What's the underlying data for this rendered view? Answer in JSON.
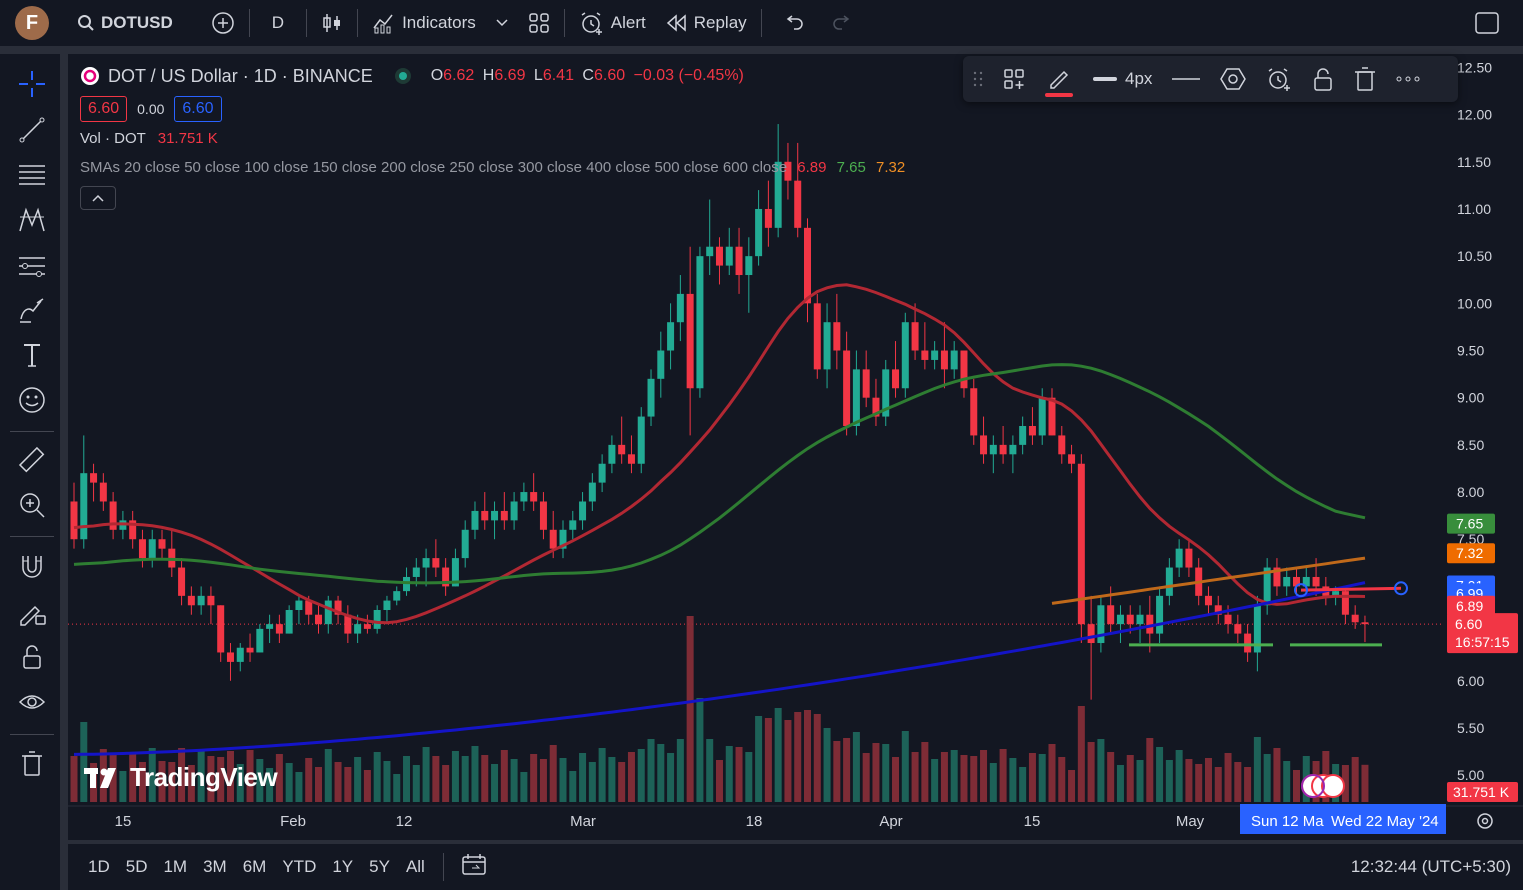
{
  "topbar": {
    "avatar_letter": "F",
    "symbol": "DOTUSD",
    "interval": "D",
    "indicators_label": "Indicators",
    "alert_label": "Alert",
    "replay_label": "Replay"
  },
  "legend": {
    "title": "DOT / US Dollar · 1D · BINANCE",
    "open_label": "O",
    "open": "6.62",
    "high_label": "H",
    "high": "6.69",
    "low_label": "L",
    "low": "6.41",
    "close_label": "C",
    "close": "6.60",
    "change": "−0.03 (−0.45%)",
    "bid": "6.60",
    "spread": "0.00",
    "ask": "6.60",
    "vol_label": "Vol · DOT",
    "vol_value": "31.751 K",
    "sma_label": "SMAs 20 close 50 close 100 close 150 close 200 close 250 close 300 close 400 close 500 close 600 close",
    "sma_v1": "6.89",
    "sma_v2": "7.65",
    "sma_v3": "7.32"
  },
  "drawbar": {
    "width_label": "4px"
  },
  "price_axis": {
    "ticks": [
      "12.50",
      "12.00",
      "11.50",
      "11.00",
      "10.50",
      "10.00",
      "9.50",
      "9.00",
      "8.50",
      "8.00",
      "7.50",
      "7.00",
      "6.50",
      "6.00",
      "5.50",
      "5.00"
    ],
    "badges": [
      {
        "label": "7.65",
        "color": "#388e3c"
      },
      {
        "label": "7.32",
        "color": "#ef6c00"
      },
      {
        "label": "7.01",
        "color": "#2962ff"
      },
      {
        "label": "6.99",
        "color": "#2962ff"
      },
      {
        "label": "6.89",
        "color": "#f23645"
      }
    ],
    "last_price": "6.60",
    "countdown": "16:57:15",
    "volume_badge": "31.751 K"
  },
  "time_axis": {
    "labels": [
      "15",
      "Feb",
      "12",
      "Mar",
      "18",
      "Apr",
      "15",
      "May"
    ],
    "range_start": "Sun 12 Ma",
    "range_end": "Wed 22 May '24"
  },
  "bottom": {
    "ranges": [
      "1D",
      "5D",
      "1M",
      "3M",
      "6M",
      "YTD",
      "1Y",
      "5Y",
      "All"
    ],
    "clock": "12:32:44 (UTC+5:30)"
  },
  "watermark": "TradingView",
  "colors": {
    "up": "#22ab94",
    "down": "#f23645",
    "sma_red": "#b22833",
    "sma_green": "#2e7d32",
    "sma_blue": "#1414c8",
    "sma_orange": "#c0691a"
  },
  "chart_data": {
    "type": "candlestick",
    "symbol": "DOT / US Dollar",
    "interval": "1D",
    "exchange": "BINANCE",
    "ylim": [
      4.8,
      12.6
    ],
    "candles": [
      [
        7.9,
        8.1,
        7.4,
        7.5
      ],
      [
        7.5,
        8.6,
        7.4,
        8.2
      ],
      [
        8.2,
        8.3,
        7.9,
        8.1
      ],
      [
        8.1,
        8.2,
        7.8,
        7.9
      ],
      [
        7.9,
        8.0,
        7.5,
        7.6
      ],
      [
        7.6,
        7.8,
        7.5,
        7.7
      ],
      [
        7.7,
        7.8,
        7.4,
        7.5
      ],
      [
        7.5,
        7.6,
        7.2,
        7.3
      ],
      [
        7.3,
        7.6,
        7.2,
        7.5
      ],
      [
        7.5,
        7.6,
        7.3,
        7.4
      ],
      [
        7.4,
        7.6,
        7.1,
        7.2
      ],
      [
        7.2,
        7.3,
        6.8,
        6.9
      ],
      [
        6.9,
        7.0,
        6.7,
        6.8
      ],
      [
        6.8,
        7.0,
        6.7,
        6.9
      ],
      [
        6.9,
        7.0,
        6.6,
        6.8
      ],
      [
        6.8,
        6.8,
        6.2,
        6.3
      ],
      [
        6.3,
        6.4,
        6.0,
        6.2
      ],
      [
        6.2,
        6.4,
        6.1,
        6.35
      ],
      [
        6.35,
        6.5,
        6.2,
        6.3
      ],
      [
        6.3,
        6.6,
        6.3,
        6.55
      ],
      [
        6.55,
        6.7,
        6.4,
        6.6
      ],
      [
        6.6,
        6.7,
        6.4,
        6.5
      ],
      [
        6.5,
        6.8,
        6.5,
        6.75
      ],
      [
        6.75,
        6.9,
        6.6,
        6.85
      ],
      [
        6.85,
        6.9,
        6.6,
        6.7
      ],
      [
        6.7,
        6.8,
        6.5,
        6.6
      ],
      [
        6.6,
        6.9,
        6.5,
        6.85
      ],
      [
        6.85,
        6.9,
        6.6,
        6.7
      ],
      [
        6.7,
        6.8,
        6.4,
        6.5
      ],
      [
        6.5,
        6.7,
        6.4,
        6.6
      ],
      [
        6.6,
        6.7,
        6.5,
        6.55
      ],
      [
        6.55,
        6.8,
        6.5,
        6.75
      ],
      [
        6.75,
        6.9,
        6.6,
        6.85
      ],
      [
        6.85,
        7.0,
        6.8,
        6.95
      ],
      [
        6.95,
        7.2,
        6.9,
        7.1
      ],
      [
        7.1,
        7.3,
        7.0,
        7.2
      ],
      [
        7.2,
        7.4,
        7.0,
        7.3
      ],
      [
        7.3,
        7.5,
        7.1,
        7.2
      ],
      [
        7.2,
        7.3,
        6.9,
        7.0
      ],
      [
        7.0,
        7.4,
        7.0,
        7.3
      ],
      [
        7.3,
        7.7,
        7.2,
        7.6
      ],
      [
        7.6,
        7.9,
        7.5,
        7.8
      ],
      [
        7.8,
        8.0,
        7.6,
        7.7
      ],
      [
        7.7,
        7.9,
        7.5,
        7.8
      ],
      [
        7.8,
        8.0,
        7.6,
        7.7
      ],
      [
        7.7,
        8.0,
        7.6,
        7.9
      ],
      [
        7.9,
        8.1,
        7.8,
        8.0
      ],
      [
        8.0,
        8.2,
        7.8,
        7.9
      ],
      [
        7.9,
        8.0,
        7.5,
        7.6
      ],
      [
        7.6,
        7.8,
        7.3,
        7.4
      ],
      [
        7.4,
        7.7,
        7.3,
        7.6
      ],
      [
        7.6,
        7.8,
        7.5,
        7.7
      ],
      [
        7.7,
        8.0,
        7.6,
        7.9
      ],
      [
        7.9,
        8.2,
        7.8,
        8.1
      ],
      [
        8.1,
        8.4,
        8.0,
        8.3
      ],
      [
        8.3,
        8.6,
        8.2,
        8.5
      ],
      [
        8.5,
        8.8,
        8.3,
        8.4
      ],
      [
        8.4,
        8.6,
        8.2,
        8.3
      ],
      [
        8.3,
        8.9,
        8.2,
        8.8
      ],
      [
        8.8,
        9.3,
        8.7,
        9.2
      ],
      [
        9.2,
        9.7,
        9.0,
        9.5
      ],
      [
        9.5,
        10.0,
        9.3,
        9.8
      ],
      [
        9.8,
        10.3,
        9.6,
        10.1
      ],
      [
        10.1,
        10.6,
        8.6,
        9.1
      ],
      [
        9.1,
        10.6,
        9.0,
        10.5
      ],
      [
        10.5,
        11.1,
        10.3,
        10.6
      ],
      [
        10.6,
        10.7,
        10.2,
        10.4
      ],
      [
        10.4,
        10.8,
        10.3,
        10.6
      ],
      [
        10.6,
        10.8,
        10.1,
        10.3
      ],
      [
        10.3,
        10.7,
        9.9,
        10.5
      ],
      [
        10.5,
        11.2,
        10.4,
        11.0
      ],
      [
        11.0,
        11.3,
        10.6,
        10.8
      ],
      [
        10.8,
        11.9,
        10.7,
        11.5
      ],
      [
        11.5,
        11.7,
        11.1,
        11.3
      ],
      [
        11.3,
        11.7,
        10.7,
        10.8
      ],
      [
        10.8,
        10.9,
        9.8,
        10.0
      ],
      [
        10.0,
        10.1,
        9.2,
        9.3
      ],
      [
        9.3,
        10.0,
        9.1,
        9.8
      ],
      [
        9.8,
        10.1,
        9.3,
        9.5
      ],
      [
        9.5,
        9.7,
        8.6,
        8.7
      ],
      [
        8.7,
        9.5,
        8.6,
        9.3
      ],
      [
        9.3,
        9.5,
        8.9,
        9.0
      ],
      [
        9.0,
        9.2,
        8.7,
        8.8
      ],
      [
        8.8,
        9.4,
        8.7,
        9.3
      ],
      [
        9.3,
        9.6,
        9.0,
        9.1
      ],
      [
        9.1,
        9.9,
        9.0,
        9.8
      ],
      [
        9.8,
        10.0,
        9.4,
        9.5
      ],
      [
        9.5,
        9.8,
        9.3,
        9.4
      ],
      [
        9.4,
        9.6,
        9.3,
        9.5
      ],
      [
        9.5,
        9.8,
        9.1,
        9.3
      ],
      [
        9.3,
        9.6,
        9.2,
        9.5
      ],
      [
        9.5,
        9.5,
        9.0,
        9.1
      ],
      [
        9.1,
        9.2,
        8.5,
        8.6
      ],
      [
        8.6,
        8.8,
        8.3,
        8.4
      ],
      [
        8.4,
        8.6,
        8.2,
        8.5
      ],
      [
        8.5,
        8.7,
        8.3,
        8.4
      ],
      [
        8.4,
        8.6,
        8.2,
        8.5
      ],
      [
        8.5,
        8.8,
        8.4,
        8.7
      ],
      [
        8.7,
        8.9,
        8.5,
        8.6
      ],
      [
        8.6,
        9.1,
        8.5,
        9.0
      ],
      [
        9.0,
        9.1,
        8.6,
        8.6
      ],
      [
        8.6,
        8.7,
        8.3,
        8.4
      ],
      [
        8.4,
        8.5,
        8.2,
        8.3
      ],
      [
        8.3,
        8.4,
        6.4,
        6.6
      ],
      [
        6.6,
        6.9,
        5.8,
        6.4
      ],
      [
        6.4,
        6.9,
        6.3,
        6.8
      ],
      [
        6.8,
        7.0,
        6.5,
        6.6
      ],
      [
        6.6,
        6.8,
        6.4,
        6.7
      ],
      [
        6.7,
        6.8,
        6.5,
        6.6
      ],
      [
        6.6,
        6.8,
        6.4,
        6.7
      ],
      [
        6.7,
        6.9,
        6.3,
        6.5
      ],
      [
        6.5,
        7.0,
        6.4,
        6.9
      ],
      [
        6.9,
        7.3,
        6.8,
        7.2
      ],
      [
        7.2,
        7.5,
        7.1,
        7.4
      ],
      [
        7.4,
        7.5,
        7.1,
        7.2
      ],
      [
        7.2,
        7.3,
        6.8,
        6.9
      ],
      [
        6.9,
        7.0,
        6.7,
        6.8
      ],
      [
        6.8,
        6.9,
        6.6,
        6.7
      ],
      [
        6.7,
        6.8,
        6.5,
        6.6
      ],
      [
        6.6,
        6.7,
        6.4,
        6.5
      ],
      [
        6.5,
        6.6,
        6.2,
        6.3
      ],
      [
        6.3,
        6.9,
        6.1,
        6.8
      ],
      [
        6.8,
        7.3,
        6.7,
        7.2
      ],
      [
        7.2,
        7.3,
        6.9,
        7.0
      ],
      [
        7.0,
        7.2,
        6.9,
        7.1
      ],
      [
        7.1,
        7.2,
        6.9,
        7.0
      ],
      [
        7.0,
        7.2,
        6.9,
        7.1
      ],
      [
        7.1,
        7.3,
        6.9,
        7.0
      ],
      [
        7.0,
        7.1,
        6.8,
        6.9
      ],
      [
        6.9,
        7.0,
        6.8,
        6.95
      ],
      [
        6.95,
        7.0,
        6.6,
        6.7
      ],
      [
        6.7,
        6.8,
        6.55,
        6.62
      ],
      [
        6.62,
        6.69,
        6.41,
        6.6
      ]
    ],
    "volume_note": "volume histogram in lower pane"
  }
}
